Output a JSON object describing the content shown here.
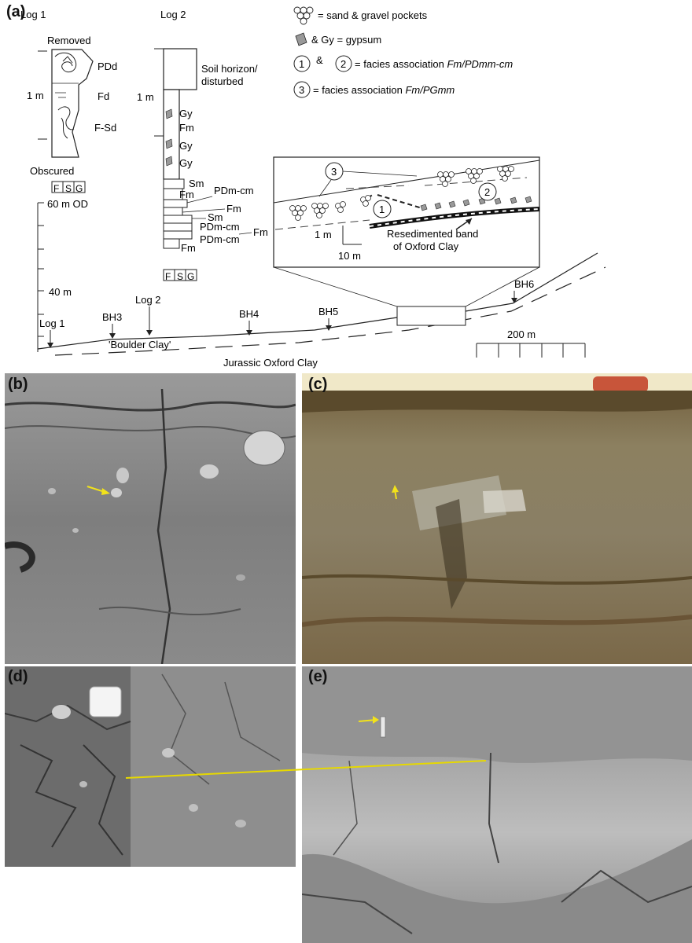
{
  "panel_labels": {
    "a": "(a)",
    "b": "(b)",
    "c": "(c)",
    "d": "(d)",
    "e": "(e)"
  },
  "log1": {
    "title": "Log 1",
    "top_label": "Removed",
    "units": [
      "PDd",
      "Fd",
      "F-Sd"
    ],
    "scale": "1 m",
    "bottom_label": "Obscured",
    "grain_scale": [
      "F",
      "S",
      "G"
    ]
  },
  "log2": {
    "title": "Log 2",
    "scale": "1 m",
    "soil_label_1": "Soil horizon/",
    "soil_label_2": "disturbed",
    "units": [
      "Gy",
      "Fm",
      "Gy",
      "Gy",
      "Sm",
      "Fm",
      "PDm-cm",
      "Fm",
      "Sm",
      "PDm-cm",
      "PDm-cm",
      "Fm",
      "Fm"
    ],
    "grain_scale": [
      "F",
      "S",
      "G"
    ]
  },
  "legend": {
    "sand_gravel": "= sand & gravel pockets",
    "gypsum": "& Gy = gypsum",
    "num1": "1",
    "amp": "&",
    "num2": "2",
    "facies_12_prefix": "= facies association ",
    "facies_12_name": "Fm/PDmm-cm",
    "num3": "3",
    "facies_3_prefix": "= facies association ",
    "facies_3_name": "Fm/PGmm"
  },
  "inset": {
    "labels": [
      "1",
      "2",
      "3"
    ],
    "scale_v": "1 m",
    "scale_h": "10 m",
    "band_label_1": "Resedimented band",
    "band_label_2": "of Oxford Clay"
  },
  "section": {
    "height_labels": [
      "60 m OD",
      "40 m"
    ],
    "boreholes": [
      "Log 1",
      "BH3",
      "Log 2",
      "BH4",
      "BH5",
      "BH6"
    ],
    "unit_upper": "'Boulder Clay'",
    "unit_lower": "Jurassic Oxford Clay",
    "scale_bar": "200 m"
  },
  "colors": {
    "arrow": "#f2e21a",
    "line_yellow": "#e6d800",
    "photo_grey": "#8c8c8c",
    "photo_colour": "#8a7a55"
  }
}
